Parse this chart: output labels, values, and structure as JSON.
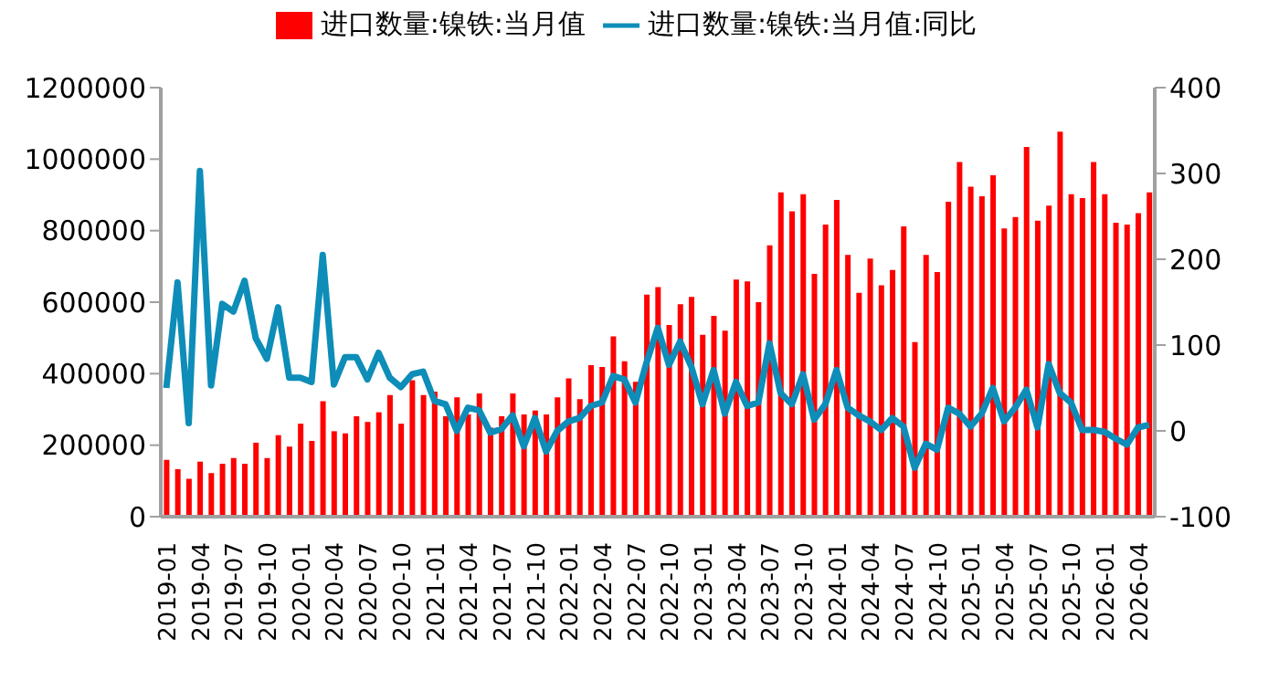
{
  "chart_data": {
    "type": "bar",
    "categories": [
      "2019-01",
      null,
      null,
      "2019-04",
      null,
      null,
      "2019-07",
      null,
      null,
      "2019-10",
      null,
      null,
      "2020-01",
      null,
      null,
      "2020-04",
      null,
      null,
      "2020-07",
      null,
      null,
      "2020-10",
      null,
      null,
      "2021-01",
      null,
      null,
      "2021-04",
      null,
      null,
      "2021-07",
      null,
      null,
      "2021-10",
      null,
      null,
      "2022-01",
      null,
      null,
      "2022-04",
      null,
      null,
      "2022-07",
      null,
      null,
      "2022-10",
      null,
      null,
      "2023-01",
      null,
      null,
      "2023-04",
      null,
      null,
      "2023-07",
      null,
      null,
      "2023-10",
      null,
      null,
      "2024-01",
      null,
      null,
      "2024-04",
      null,
      null,
      "2024-07",
      null,
      null,
      "2024-10",
      null,
      null,
      "2025-01",
      null,
      null,
      "2025-04",
      null,
      null,
      "2025-07",
      null,
      null,
      "2025-10",
      null,
      null,
      "2026-01",
      null,
      null,
      "2026-04",
      null
    ],
    "series": [
      {
        "name": "进口数量:镍铁:当月值",
        "color": "#ff0000",
        "values": [
          159000,
          133000,
          106000,
          154000,
          122000,
          148000,
          164000,
          148000,
          207000,
          164000,
          228000,
          196000,
          260000,
          212000,
          323000,
          239000,
          233000,
          281000,
          265000,
          292000,
          340000,
          260000,
          382000,
          340000,
          350000,
          281000,
          334000,
          286000,
          345000,
          249000,
          281000,
          345000,
          286000,
          297000,
          286000,
          334000,
          387000,
          329000,
          424000,
          419000,
          504000,
          435000,
          377000,
          621000,
          642000,
          536000,
          594000,
          615000,
          509000,
          562000,
          520000,
          663000,
          658000,
          600000,
          759000,
          907000,
          854000,
          902000,
          679000,
          817000,
          886000,
          732000,
          626000,
          722000,
          647000,
          690000,
          812000,
          488000,
          732000,
          684000,
          881000,
          992000,
          923000,
          896000,
          955000,
          806000,
          838000,
          1034000,
          828000,
          870000,
          1077000,
          902000,
          891000,
          992000,
          902000,
          822000,
          817000,
          849000,
          907000
        ]
      },
      {
        "name": "进口数量:镍铁:当月值:同比",
        "type": "line",
        "axis": "y2",
        "color": "#0e8db8",
        "values": [
          50,
          173,
          9,
          303,
          53,
          148,
          139,
          175,
          108,
          84,
          144,
          62,
          62,
          57,
          205,
          54,
          86,
          86,
          60,
          91,
          62,
          51,
          66,
          69,
          35,
          31,
          0,
          27,
          24,
          -2,
          2,
          18,
          -18,
          15,
          -24,
          0,
          11,
          15,
          29,
          33,
          64,
          60,
          33,
          80,
          120,
          77,
          104,
          75,
          31,
          71,
          20,
          57,
          29,
          33,
          102,
          44,
          31,
          66,
          13,
          31,
          71,
          27,
          18,
          11,
          1,
          15,
          5,
          -43,
          -15,
          -22,
          27,
          20,
          5,
          20,
          50,
          11,
          27,
          48,
          4,
          78,
          44,
          33,
          1,
          1,
          -1,
          -9,
          -16,
          4,
          7
        ]
      }
    ],
    "ylim": [
      0,
      1200000
    ],
    "yticks": [
      0,
      200000,
      400000,
      600000,
      800000,
      1000000,
      1200000
    ],
    "y2lim": [
      -100,
      400
    ],
    "y2ticks": [
      -100,
      0,
      100,
      200,
      300,
      400
    ],
    "legend": "top"
  }
}
